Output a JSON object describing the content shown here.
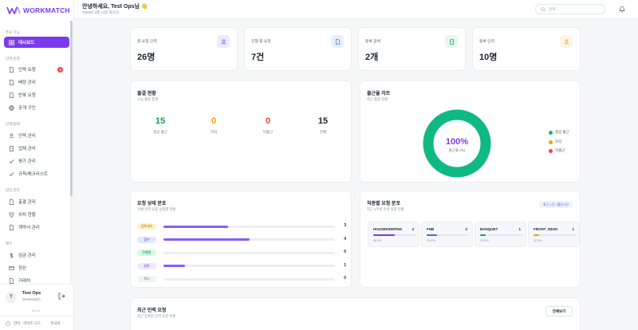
{
  "brand": {
    "name": "WORKMATCH"
  },
  "sidebar": {
    "sections": [
      {
        "label": "주요 기능",
        "items": [
          {
            "label": "대시보드",
            "icon": "grid-icon",
            "active": true
          }
        ]
      },
      {
        "label": "인력 운영",
        "items": [
          {
            "label": "인력 요청",
            "icon": "document-icon",
            "badge": "3"
          },
          {
            "label": "배정 관리",
            "icon": "document-icon"
          },
          {
            "label": "반복 요청",
            "icon": "document-icon"
          },
          {
            "label": "공개 구인",
            "icon": "globe-icon"
          }
        ]
      },
      {
        "label": "인력/업체",
        "items": [
          {
            "label": "인력 관리",
            "icon": "user-icon"
          },
          {
            "label": "업체 관리",
            "icon": "building-icon"
          },
          {
            "label": "평가 관리",
            "icon": "check-icon"
          },
          {
            "label": "규칙/체크리스트",
            "icon": "check-icon"
          }
        ]
      },
      {
        "label": "현장 관리",
        "items": [
          {
            "label": "출결 관리",
            "icon": "document-icon"
          },
          {
            "label": "위치 현황",
            "icon": "pin-icon"
          },
          {
            "label": "계약서 관리",
            "icon": "document-icon"
          }
        ]
      },
      {
        "label": "재무",
        "items": [
          {
            "label": "임금 관리",
            "icon": "dollar-icon"
          },
          {
            "label": "정산",
            "icon": "card-icon"
          },
          {
            "label": "거래처",
            "icon": "document-icon"
          }
        ]
      }
    ]
  },
  "user": {
    "initial": "T",
    "name": "Test Ops",
    "org": "WorkMatch",
    "version": "v0.4.1"
  },
  "sidebar_footer": {
    "mode": "한이 · 라이트 모드",
    "lang": "한국어"
  },
  "header": {
    "greeting": "안녕하세요, Test Ops님 👋",
    "date": "2026년 4월 14일 화요일",
    "search_placeholder": "검색..."
  },
  "stats": [
    {
      "label": "총 요청 인력",
      "value": "26명",
      "icon": "user-icon",
      "tint": "#efe9fe",
      "color": "#7c3aed"
    },
    {
      "label": "진행 중 요청",
      "value": "7건",
      "icon": "document-icon",
      "tint": "#e8f0fe",
      "color": "#3b6fd8"
    },
    {
      "label": "등록 업체",
      "value": "2개",
      "icon": "building-icon",
      "tint": "#e6f7ee",
      "color": "#16a34a"
    },
    {
      "label": "등록 인력",
      "value": "10명",
      "icon": "user-icon",
      "tint": "#fef6e1",
      "color": "#d99a06"
    }
  ],
  "attendance": {
    "title": "출결 현황",
    "subtitle": "오늘 출결 통계",
    "items": [
      {
        "value": "15",
        "label": "정상 출근",
        "color": "#16a34a"
      },
      {
        "value": "0",
        "label": "지각",
        "color": "#f59e0b"
      },
      {
        "value": "0",
        "label": "미출근",
        "color": "#ef4444"
      },
      {
        "value": "15",
        "label": "전체",
        "color": "#1f2330"
      }
    ]
  },
  "rate_chart": {
    "title": "출근율 차트",
    "subtitle": "최근 출결 현황",
    "center_value": "100%",
    "center_label": "출근율 (%)",
    "legend": [
      {
        "label": "정상 출근",
        "color": "#10b981"
      },
      {
        "label": "지각",
        "color": "#f59e0b"
      },
      {
        "label": "미출근",
        "color": "#ef4444"
      }
    ]
  },
  "request_status": {
    "title": "요청 상태 분포",
    "subtitle": "전체 인력 요청 상태별 현황",
    "rows": [
      {
        "label": "검토대기",
        "count": "3",
        "ratio": 0.375,
        "pill_bg": "#fef3c7",
        "pill_fg": "#b45309"
      },
      {
        "label": "접수",
        "count": "4",
        "ratio": 0.5,
        "pill_bg": "#e0e7ff",
        "pill_fg": "#4338ca"
      },
      {
        "label": "진행중",
        "count": "0",
        "ratio": 0.0,
        "pill_bg": "#d1fae5",
        "pill_fg": "#047857"
      },
      {
        "label": "완료",
        "count": "1",
        "ratio": 0.125,
        "pill_bg": "#ede9fe",
        "pill_fg": "#6d28d9"
      },
      {
        "label": "취소",
        "count": "0",
        "ratio": 0.0,
        "pill_bg": "#f1f2f5",
        "pill_fg": "#6b7080"
      }
    ]
  },
  "job_requests": {
    "title": "직종별 요청 분포",
    "subtitle": "최근 1주일 인력 요청 현황",
    "badge": "최근 1건 / 활성 0건",
    "items": [
      {
        "name": "HOUSEKEEPING",
        "count": "4",
        "pct": "50.0%",
        "ratio": 0.5,
        "color": "#7c3aed"
      },
      {
        "name": "FNB",
        "count": "2",
        "pct": "25.0%",
        "ratio": 0.25,
        "color": "#3b6fd8"
      },
      {
        "name": "BANQUET",
        "count": "1",
        "pct": "12.5%",
        "ratio": 0.125,
        "color": "#16a34a"
      },
      {
        "name": "FRONT_DESK",
        "count": "1",
        "pct": "12.5%",
        "ratio": 0.125,
        "color": "#f59e0b"
      }
    ]
  },
  "recent": {
    "title": "최근 인력 요청",
    "subtitle": "최근 등록된 인력 요청 목록",
    "view_all": "전체보기",
    "columns": [
      "",
      "",
      "",
      "",
      "",
      ""
    ]
  }
}
